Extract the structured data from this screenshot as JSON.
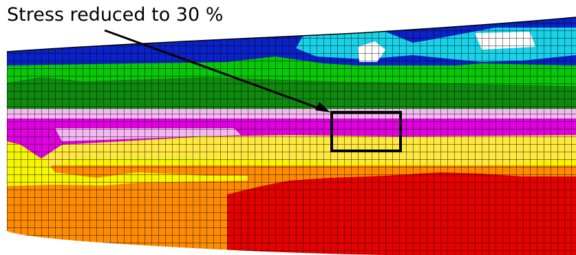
{
  "annotation": {
    "label": "Stress reduced to 30 %"
  },
  "contour_colors": {
    "blue": "#0a22c8",
    "cyan": "#19d2e8",
    "white": "#ffffff",
    "green": "#08c808",
    "dark_green": "#0f8a0f",
    "pink": "#f4b8f0",
    "magenta": "#e000e0",
    "yellow": "#f6f600",
    "light_yellow": "#ffe840",
    "orange": "#ff8c00",
    "red": "#e60000",
    "mesh_line": "#000000"
  },
  "icons": [
    "annotation-arrow",
    "highlight-box"
  ]
}
